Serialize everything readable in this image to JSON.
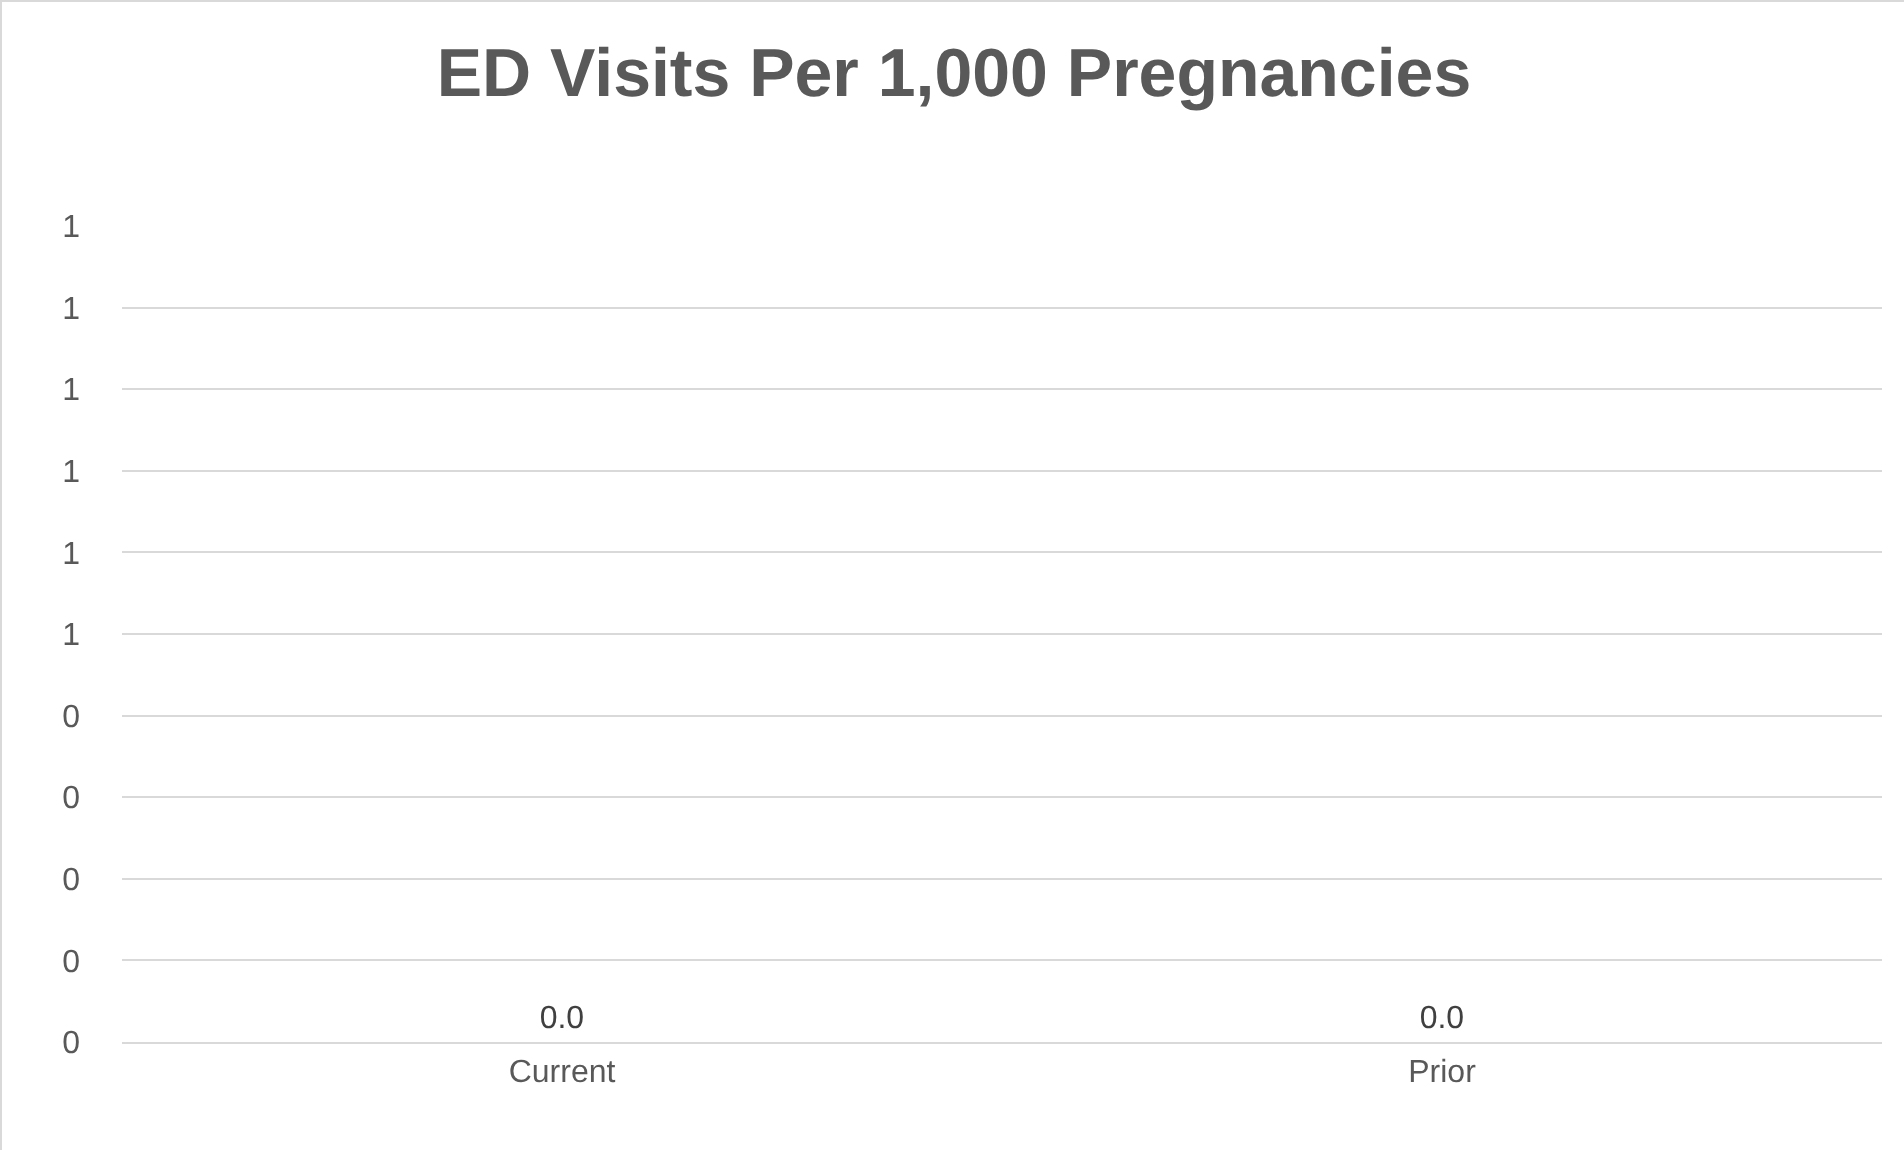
{
  "chart_data": {
    "type": "bar",
    "title": "ED Visits Per 1,000 Pregnancies",
    "categories": [
      "Current",
      "Prior"
    ],
    "values": [
      0,
      0
    ],
    "value_labels": [
      "0.0",
      "0.0"
    ],
    "ylim": [
      0,
      1.0
    ],
    "yticks": [
      {
        "value": 0,
        "label": "0"
      },
      {
        "value": 0.1,
        "label": "0"
      },
      {
        "value": 0.2,
        "label": "0"
      },
      {
        "value": 0.3,
        "label": "0"
      },
      {
        "value": 0.4,
        "label": "0"
      },
      {
        "value": 0.5,
        "label": "1"
      },
      {
        "value": 0.6,
        "label": "1"
      },
      {
        "value": 0.7,
        "label": "1"
      },
      {
        "value": 0.8,
        "label": "1"
      },
      {
        "value": 0.9,
        "label": "1"
      },
      {
        "value": 1.0,
        "label": "1"
      }
    ],
    "grid": "y"
  }
}
